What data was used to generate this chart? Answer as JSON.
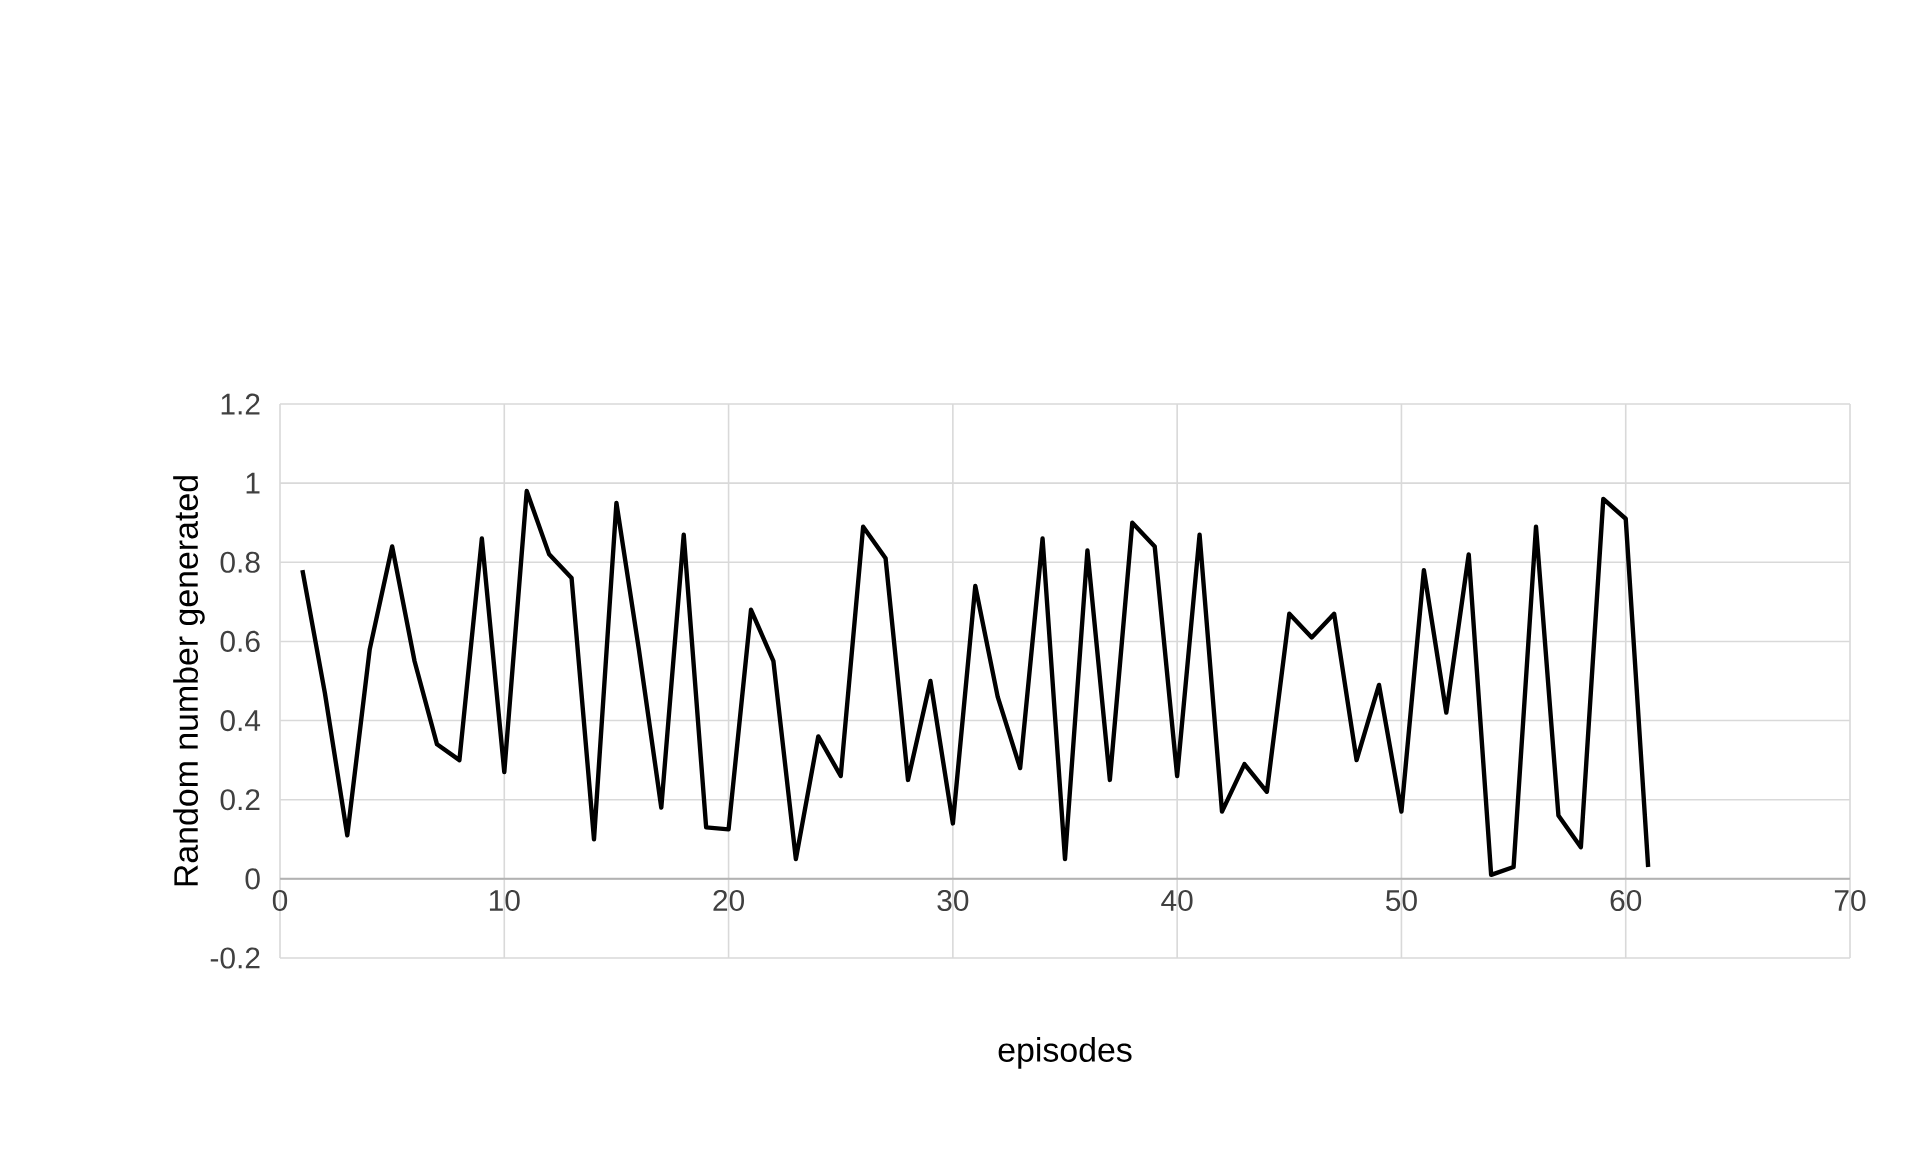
{
  "chart_data": {
    "type": "line",
    "xlabel": "episodes",
    "ylabel": "Random number generated",
    "x": [
      1,
      2,
      3,
      4,
      5,
      6,
      7,
      8,
      9,
      10,
      11,
      12,
      13,
      14,
      15,
      16,
      17,
      18,
      19,
      20,
      21,
      22,
      23,
      24,
      25,
      26,
      27,
      28,
      29,
      30,
      31,
      32,
      33,
      34,
      35,
      36,
      37,
      38,
      39,
      40,
      41,
      42,
      43,
      44,
      45,
      46,
      47,
      48,
      49,
      50,
      51,
      52,
      53,
      54,
      55,
      56,
      57,
      58,
      59,
      60,
      61
    ],
    "series": [
      {
        "color": "#000000",
        "values": [
          0.78,
          0.47,
          0.11,
          0.58,
          0.84,
          0.55,
          0.34,
          0.3,
          0.86,
          0.27,
          0.98,
          0.82,
          0.76,
          0.1,
          0.95,
          0.58,
          0.18,
          0.87,
          0.13,
          0.125,
          0.68,
          0.55,
          0.05,
          0.36,
          0.26,
          0.89,
          0.81,
          0.25,
          0.5,
          0.14,
          0.74,
          0.46,
          0.28,
          0.86,
          0.05,
          0.83,
          0.25,
          0.9,
          0.84,
          0.26,
          0.87,
          0.17,
          0.29,
          0.22,
          0.67,
          0.61,
          0.67,
          0.3,
          0.49,
          0.17,
          0.78,
          0.42,
          0.82,
          0.01,
          0.03,
          0.89,
          0.16,
          0.08,
          0.96,
          0.91,
          0.03
        ]
      }
    ],
    "xlim": [
      0,
      70
    ],
    "ylim": [
      -0.2,
      1.2
    ],
    "xticks": [
      0,
      10,
      20,
      30,
      40,
      50,
      60,
      70
    ],
    "yticks": [
      -0.2,
      0,
      0.2,
      0.4,
      0.6,
      0.8,
      1,
      1.2
    ],
    "grid": true,
    "marker": "none",
    "line_style": "solid"
  }
}
